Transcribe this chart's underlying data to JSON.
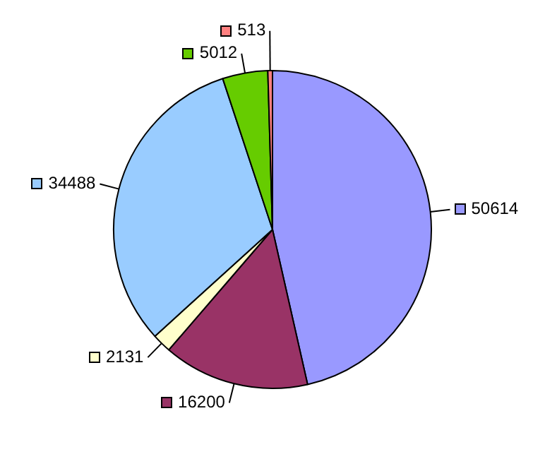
{
  "chart_data": {
    "type": "pie",
    "categories": [
      null,
      null,
      null,
      null,
      null,
      null
    ],
    "values": [
      50614,
      16200,
      2131,
      34488,
      5012,
      513
    ],
    "colors": [
      "#9999ff",
      "#993366",
      "#ffffcc",
      "#99ccff",
      "#66cc00",
      "#ff8080"
    ],
    "data_labels": true,
    "legend": false
  }
}
